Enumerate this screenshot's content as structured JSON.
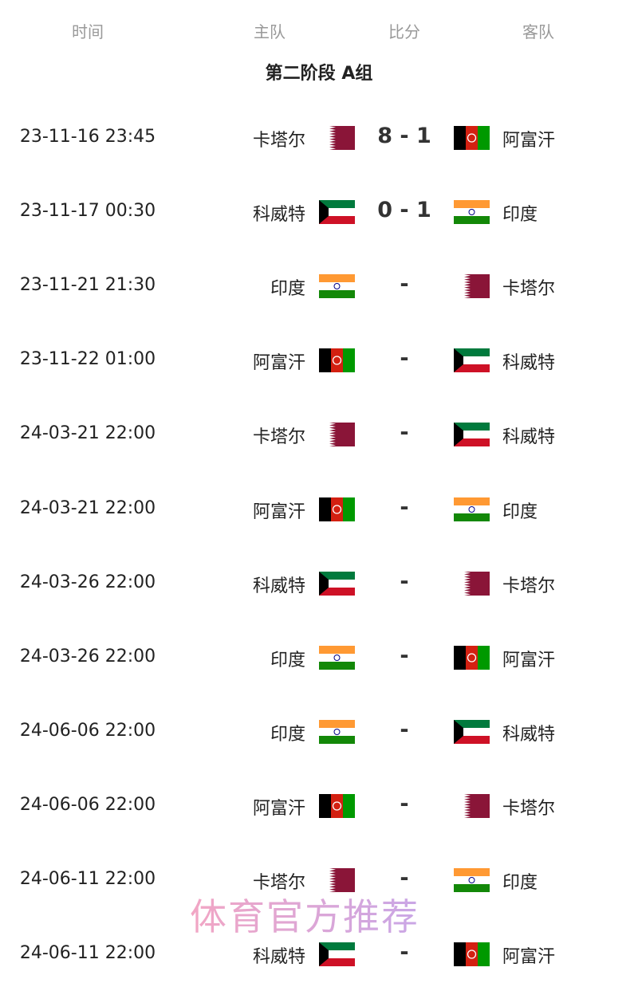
{
  "header": {
    "time": "时间",
    "home": "主队",
    "score": "比分",
    "away": "客队"
  },
  "group_title": "第二阶段 A组",
  "colors": {
    "qatar": "#8a1538",
    "kuwait_green": "#007a3d",
    "kuwait_red": "#ce1126",
    "india_saffron": "#ff9933",
    "india_green": "#138808",
    "afghan_red": "#d32011",
    "afghan_green": "#009900"
  },
  "matches": [
    {
      "time": "23-11-16 23:45",
      "home": "卡塔尔",
      "home_flag": "qatar",
      "score": "8 - 1",
      "away": "阿富汗",
      "away_flag": "afghanistan"
    },
    {
      "time": "23-11-17 00:30",
      "home": "科威特",
      "home_flag": "kuwait",
      "score": "0 - 1",
      "away": "印度",
      "away_flag": "india"
    },
    {
      "time": "23-11-21 21:30",
      "home": "印度",
      "home_flag": "india",
      "score": "-",
      "away": "卡塔尔",
      "away_flag": "qatar"
    },
    {
      "time": "23-11-22 01:00",
      "home": "阿富汗",
      "home_flag": "afghanistan",
      "score": "-",
      "away": "科威特",
      "away_flag": "kuwait"
    },
    {
      "time": "24-03-21 22:00",
      "home": "卡塔尔",
      "home_flag": "qatar",
      "score": "-",
      "away": "科威特",
      "away_flag": "kuwait"
    },
    {
      "time": "24-03-21 22:00",
      "home": "阿富汗",
      "home_flag": "afghanistan",
      "score": "-",
      "away": "印度",
      "away_flag": "india"
    },
    {
      "time": "24-03-26 22:00",
      "home": "科威特",
      "home_flag": "kuwait",
      "score": "-",
      "away": "卡塔尔",
      "away_flag": "qatar"
    },
    {
      "time": "24-03-26 22:00",
      "home": "印度",
      "home_flag": "india",
      "score": "-",
      "away": "阿富汗",
      "away_flag": "afghanistan"
    },
    {
      "time": "24-06-06 22:00",
      "home": "印度",
      "home_flag": "india",
      "score": "-",
      "away": "科威特",
      "away_flag": "kuwait"
    },
    {
      "time": "24-06-06 22:00",
      "home": "阿富汗",
      "home_flag": "afghanistan",
      "score": "-",
      "away": "卡塔尔",
      "away_flag": "qatar"
    },
    {
      "time": "24-06-11 22:00",
      "home": "卡塔尔",
      "home_flag": "qatar",
      "score": "-",
      "away": "印度",
      "away_flag": "india"
    },
    {
      "time": "24-06-11 22:00",
      "home": "科威特",
      "home_flag": "kuwait",
      "score": "-",
      "away": "阿富汗",
      "away_flag": "afghanistan"
    }
  ],
  "watermark": "体育官方推荐"
}
